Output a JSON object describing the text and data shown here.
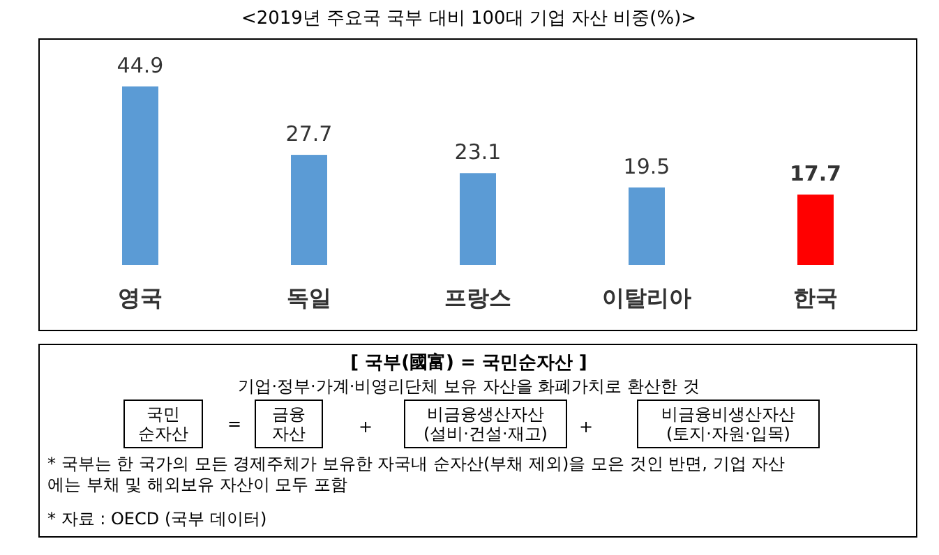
{
  "chart_data": {
    "type": "bar",
    "title": "<2019년 주요국 국부 대비 100대 기업 자산 비중(%)>",
    "categories": [
      "영국",
      "독일",
      "프랑스",
      "이탈리아",
      "한국"
    ],
    "values": [
      44.9,
      27.7,
      23.1,
      19.5,
      17.7
    ],
    "colors": [
      "#5b9bd5",
      "#5b9bd5",
      "#5b9bd5",
      "#5b9bd5",
      "#ff0000"
    ],
    "data_labels": true,
    "annotations": [
      "[ 국부(國富) = 국민순자산 ]",
      "기업·정부·가계·비영리단체 보유 자산을 화폐가치로 환산한 것",
      "국민\n순자산",
      "=",
      "금융\n자산",
      "+",
      "비금융생산자산\n(설비·건설·재고)",
      "+",
      "비금융비생산자산\n(토지·자원·입목)",
      "* 국부는 한 국가의 모든 경제주체가 보유한 자국내 순자산(부채 제외)을 모은 것인 반면, 기업 자산\n에는 부채 및 해외보유 자산이 모두 포함",
      "* 자료 : OECD (국부 데이터)"
    ]
  }
}
